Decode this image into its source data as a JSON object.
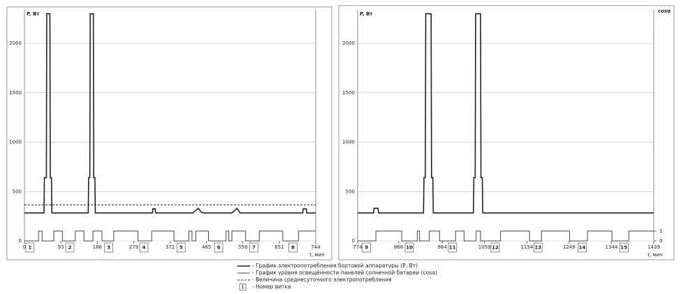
{
  "chart_data": [
    {
      "type": "line",
      "ylabel": "P, Вт",
      "xlabel": "t, мин",
      "xlim": [
        0,
        744
      ],
      "ylim": [
        0,
        2340
      ],
      "y2lim": [
        0,
        23.4
      ],
      "xticks": [
        0,
        93,
        186,
        279,
        372,
        465,
        558,
        651,
        744
      ],
      "yticks": [
        0,
        500,
        1000,
        1500,
        2000
      ],
      "grid": true,
      "series": [
        {
          "name": "- График электропотребления бортовой аппаратуры (P, Вт)",
          "color": "#222222",
          "width": 1.6,
          "x": [
            0,
            50,
            51,
            56,
            57,
            65,
            66,
            69,
            70,
            163,
            164,
            167,
            168,
            176,
            177,
            180,
            181,
            327,
            328,
            334,
            335,
            430,
            444,
            452,
            458,
            530,
            543,
            551,
            711,
            712,
            720,
            721,
            744
          ],
          "values": [
            283,
            283,
            640,
            640,
            2300,
            2300,
            640,
            640,
            283,
            283,
            640,
            640,
            2300,
            2300,
            640,
            640,
            283,
            283,
            325,
            325,
            283,
            283,
            330,
            290,
            283,
            283,
            330,
            283,
            283,
            325,
            325,
            283,
            283
          ]
        },
        {
          "name": "- График уровня освещённости панелей солнечной батареи (cosα)",
          "color": "#444444",
          "width": 1,
          "axis": "y2",
          "x": [
            0,
            36,
            36,
            45,
            45,
            75,
            75,
            97,
            97,
            130,
            130,
            152,
            152,
            175,
            175,
            198,
            198,
            228,
            228,
            290,
            290,
            325,
            325,
            382,
            382,
            420,
            420,
            428,
            428,
            438,
            438,
            470,
            470,
            515,
            515,
            522,
            522,
            530,
            530,
            565,
            565,
            600,
            600,
            660,
            660,
            700,
            700,
            744
          ],
          "values": [
            0,
            0,
            1,
            1,
            0,
            0,
            1,
            1,
            0,
            0,
            1,
            1,
            0,
            0,
            1,
            1,
            0,
            0,
            1,
            1,
            0,
            0,
            1,
            1,
            0,
            0,
            1,
            1,
            0,
            0,
            1,
            1,
            0,
            0,
            1,
            1,
            0,
            0,
            1,
            1,
            0,
            0,
            1,
            1,
            0,
            0,
            1,
            1
          ]
        },
        {
          "name": "- Величина среднесуточного электропотребления",
          "color": "#222222",
          "width": 1,
          "dash": true,
          "x": [
            0,
            744
          ],
          "values": [
            365,
            365
          ]
        }
      ],
      "orbit_legend": {
        "box": "1",
        "label": "- Номер витка"
      },
      "annotations": [
        {
          "text": "1",
          "x": 14
        },
        {
          "text": "2",
          "x": 116
        },
        {
          "text": "3",
          "x": 215
        },
        {
          "text": "4",
          "x": 305
        },
        {
          "text": "5",
          "x": 400
        },
        {
          "text": "6",
          "x": 496
        },
        {
          "text": "7",
          "x": 586
        },
        {
          "text": "8",
          "x": 686
        }
      ]
    },
    {
      "type": "line",
      "ylabel": "P, Вт",
      "xlabel": "t, мин",
      "y2label": "cosα",
      "xlim": [
        774,
        1439
      ],
      "ylim": [
        0,
        2340
      ],
      "y2lim": [
        0,
        23.4
      ],
      "xticks": [
        774,
        866,
        964,
        1059,
        1154,
        1249,
        1344,
        1439
      ],
      "yticks": [
        0,
        500,
        1000,
        1500,
        2000
      ],
      "y2ticks": [
        0,
        1
      ],
      "grid": true,
      "series": [
        {
          "color": "#222222",
          "width": 1.6,
          "x": [
            774,
            810,
            811,
            820,
            821,
            922,
            923,
            926,
            927,
            939,
            940,
            943,
            944,
            1034,
            1035,
            1038,
            1039,
            1050,
            1051,
            1054,
            1055,
            1439
          ],
          "values": [
            283,
            283,
            330,
            330,
            283,
            283,
            640,
            640,
            2300,
            2300,
            640,
            640,
            283,
            283,
            640,
            640,
            2300,
            2300,
            640,
            640,
            283,
            283
          ]
        },
        {
          "color": "#444444",
          "width": 1,
          "axis": "y2",
          "x": [
            774,
            815,
            815,
            873,
            873,
            908,
            908,
            913,
            913,
            935,
            935,
            958,
            958,
            994,
            994,
            1013,
            1013,
            1040,
            1040,
            1050,
            1050,
            1095,
            1095,
            1160,
            1160,
            1187,
            1187,
            1250,
            1250,
            1290,
            1290,
            1345,
            1345,
            1383,
            1383,
            1439
          ],
          "values": [
            0,
            0,
            1,
            1,
            0,
            0,
            1,
            1,
            0,
            0,
            1,
            1,
            0,
            0,
            1,
            1,
            0,
            0,
            1,
            1,
            0,
            0,
            1,
            1,
            0,
            0,
            1,
            1,
            0,
            0,
            1,
            1,
            0,
            0,
            1,
            1
          ]
        }
      ],
      "annotations": [
        {
          "text": "9",
          "x": 794
        },
        {
          "text": "10",
          "x": 890
        },
        {
          "text": "11",
          "x": 987
        },
        {
          "text": "12",
          "x": 1083
        },
        {
          "text": "13",
          "x": 1179
        },
        {
          "text": "14",
          "x": 1278
        },
        {
          "text": "15",
          "x": 1372
        }
      ]
    }
  ]
}
